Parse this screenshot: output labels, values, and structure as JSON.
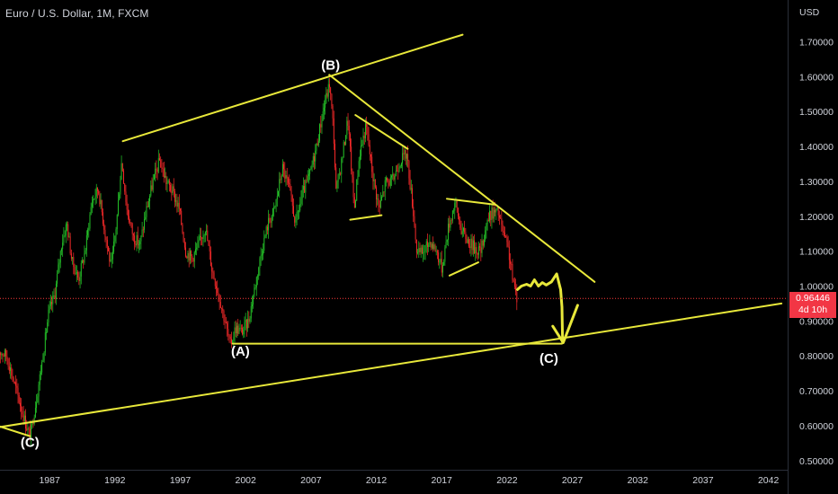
{
  "header": {
    "title": "Euro / U.S. Dollar, 1M, FXCM"
  },
  "price_tag": {
    "price": "0.96446",
    "countdown": "4d 10h"
  },
  "colors": {
    "background": "#000000",
    "up_candle": "#26c92a",
    "down_candle": "#ff2b2b",
    "drawing": "#e8e83a",
    "price_line": "#ff3b3b",
    "axis_text": "#d1d4dc"
  },
  "chart_data": {
    "type": "candlestick",
    "title": "Euro / U.S. Dollar, 1M, FXCM",
    "y_axis_label": "USD",
    "ylim": [
      0.48,
      1.76
    ],
    "xlim": [
      1983.0,
      2044.0
    ],
    "y_ticks": [
      "1.70000",
      "1.60000",
      "1.50000",
      "1.40000",
      "1.30000",
      "1.20000",
      "1.10000",
      "1.00000",
      "0.90000",
      "0.80000",
      "0.70000",
      "0.60000",
      "0.50000"
    ],
    "y_tick_values": [
      1.7,
      1.6,
      1.5,
      1.4,
      1.3,
      1.2,
      1.1,
      1.0,
      0.9,
      0.8,
      0.7,
      0.6,
      0.5
    ],
    "x_ticks": [
      "1987",
      "1992",
      "1997",
      "2002",
      "2007",
      "2012",
      "2017",
      "2022",
      "2027",
      "2032",
      "2037",
      "2042"
    ],
    "x_tick_values": [
      1987,
      1992,
      1997,
      2002,
      2007,
      2012,
      2017,
      2022,
      2027,
      2032,
      2037,
      2042
    ],
    "current_price": 0.96446,
    "price_path": [
      [
        1983.0,
        0.82
      ],
      [
        1983.8,
        0.8
      ],
      [
        1984.4,
        0.72
      ],
      [
        1985.0,
        0.64
      ],
      [
        1985.3,
        0.6
      ],
      [
        1985.6,
        0.57
      ],
      [
        1986.0,
        0.66
      ],
      [
        1986.5,
        0.78
      ],
      [
        1987.0,
        0.92
      ],
      [
        1987.5,
        0.98
      ],
      [
        1988.0,
        1.12
      ],
      [
        1988.4,
        1.18
      ],
      [
        1988.8,
        1.07
      ],
      [
        1989.3,
        1.02
      ],
      [
        1989.8,
        1.1
      ],
      [
        1990.3,
        1.24
      ],
      [
        1990.8,
        1.28
      ],
      [
        1991.3,
        1.16
      ],
      [
        1991.8,
        1.05
      ],
      [
        1992.2,
        1.18
      ],
      [
        1992.6,
        1.36
      ],
      [
        1993.0,
        1.22
      ],
      [
        1993.5,
        1.14
      ],
      [
        1994.0,
        1.12
      ],
      [
        1994.5,
        1.22
      ],
      [
        1995.0,
        1.3
      ],
      [
        1995.5,
        1.36
      ],
      [
        1996.0,
        1.3
      ],
      [
        1996.5,
        1.27
      ],
      [
        1997.0,
        1.22
      ],
      [
        1997.5,
        1.1
      ],
      [
        1998.0,
        1.08
      ],
      [
        1998.5,
        1.12
      ],
      [
        1999.0,
        1.17
      ],
      [
        1999.5,
        1.05
      ],
      [
        2000.0,
        0.98
      ],
      [
        2000.5,
        0.9
      ],
      [
        2000.9,
        0.83
      ],
      [
        2001.3,
        0.88
      ],
      [
        2001.8,
        0.87
      ],
      [
        2002.3,
        0.9
      ],
      [
        2002.8,
        1.0
      ],
      [
        2003.3,
        1.1
      ],
      [
        2003.8,
        1.18
      ],
      [
        2004.3,
        1.22
      ],
      [
        2004.9,
        1.34
      ],
      [
        2005.4,
        1.28
      ],
      [
        2005.9,
        1.18
      ],
      [
        2006.4,
        1.26
      ],
      [
        2007.0,
        1.32
      ],
      [
        2007.5,
        1.4
      ],
      [
        2008.0,
        1.5
      ],
      [
        2008.5,
        1.58
      ],
      [
        2008.8,
        1.45
      ],
      [
        2009.0,
        1.27
      ],
      [
        2009.4,
        1.35
      ],
      [
        2009.9,
        1.48
      ],
      [
        2010.4,
        1.22
      ],
      [
        2010.8,
        1.38
      ],
      [
        2011.3,
        1.46
      ],
      [
        2011.8,
        1.32
      ],
      [
        2012.3,
        1.22
      ],
      [
        2012.8,
        1.3
      ],
      [
        2013.3,
        1.3
      ],
      [
        2013.9,
        1.36
      ],
      [
        2014.4,
        1.38
      ],
      [
        2014.9,
        1.22
      ],
      [
        2015.2,
        1.09
      ],
      [
        2015.7,
        1.1
      ],
      [
        2016.2,
        1.13
      ],
      [
        2016.7,
        1.1
      ],
      [
        2017.1,
        1.05
      ],
      [
        2017.6,
        1.17
      ],
      [
        2018.1,
        1.24
      ],
      [
        2018.6,
        1.16
      ],
      [
        2019.1,
        1.13
      ],
      [
        2019.6,
        1.11
      ],
      [
        2020.1,
        1.1
      ],
      [
        2020.5,
        1.18
      ],
      [
        2020.9,
        1.21
      ],
      [
        2021.4,
        1.21
      ],
      [
        2021.8,
        1.15
      ],
      [
        2022.2,
        1.1
      ],
      [
        2022.6,
        1.0
      ],
      [
        2022.8,
        0.97
      ]
    ],
    "annotations": [
      {
        "label": "(B)",
        "x": 2008.5,
        "y": 1.62
      },
      {
        "label": "(A)",
        "x": 2001.6,
        "y": 0.8
      },
      {
        "label": "(C)",
        "x": 2025.2,
        "y": 0.78
      },
      {
        "label": "(C)",
        "x": 1985.5,
        "y": 0.54
      }
    ],
    "trend_lines": [
      [
        [
          1992.6,
          1.415
        ],
        [
          2018.6,
          1.72
        ]
      ],
      [
        [
          2008.4,
          1.605
        ],
        [
          2028.7,
          1.012
        ]
      ],
      [
        [
          1983.0,
          0.595
        ],
        [
          2043.0,
          0.95
        ]
      ],
      [
        [
          1983.0,
          0.6
        ],
        [
          1985.5,
          0.57
        ]
      ],
      [
        [
          2001.0,
          0.835
        ],
        [
          2026.2,
          0.835
        ]
      ],
      [
        [
          2010.4,
          1.49
        ],
        [
          2014.4,
          1.393
        ]
      ],
      [
        [
          2010.0,
          1.19
        ],
        [
          2012.4,
          1.203
        ]
      ],
      [
        [
          2017.4,
          1.25
        ],
        [
          2021.1,
          1.233
        ]
      ],
      [
        [
          2017.6,
          1.03
        ],
        [
          2019.8,
          1.068
        ]
      ]
    ],
    "projection_path": [
      [
        2022.8,
        0.99
      ],
      [
        2023.1,
        1.0
      ],
      [
        2023.5,
        1.005
      ],
      [
        2023.8,
        1.0
      ],
      [
        2024.1,
        1.018
      ],
      [
        2024.4,
        1.0
      ],
      [
        2024.7,
        1.01
      ],
      [
        2025.0,
        1.003
      ],
      [
        2025.4,
        1.012
      ],
      [
        2025.8,
        1.035
      ],
      [
        2026.1,
        0.99
      ],
      [
        2026.2,
        0.94
      ],
      [
        2026.25,
        0.84
      ]
    ],
    "projection_arrow": {
      "v_left": [
        2025.5,
        0.885
      ],
      "v_bottom": [
        2026.3,
        0.838
      ],
      "v_right": [
        2027.4,
        0.945
      ]
    }
  }
}
